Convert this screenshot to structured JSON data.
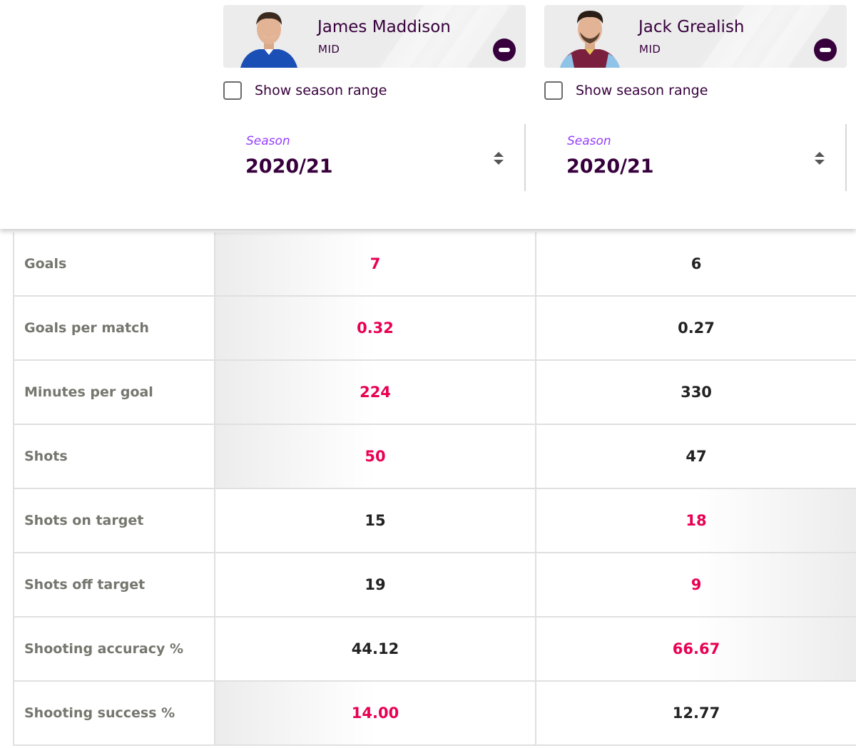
{
  "players": [
    {
      "name": "James Maddison",
      "position": "MID",
      "shirt_color": "#1a4fb5",
      "remove_icon": "minus-circle-icon",
      "season_range_label": "Show season range",
      "season_range_checked": false,
      "season_label": "Season",
      "season_value": "2020/21"
    },
    {
      "name": "Jack Grealish",
      "position": "MID",
      "shirt_color": "#7a1f3d",
      "remove_icon": "minus-circle-icon",
      "season_range_label": "Show season range",
      "season_range_checked": false,
      "season_label": "Season",
      "season_value": "2020/21"
    }
  ],
  "colors": {
    "primary": "#37003c",
    "accent_purple": "#963cff",
    "winner": "#e90052",
    "label_grey": "#76766f"
  },
  "stats": [
    {
      "label": "Goals",
      "a": "7",
      "b": "6",
      "winner": "a"
    },
    {
      "label": "Goals per match",
      "a": "0.32",
      "b": "0.27",
      "winner": "a"
    },
    {
      "label": "Minutes per goal",
      "a": "224",
      "b": "330",
      "winner": "a"
    },
    {
      "label": "Shots",
      "a": "50",
      "b": "47",
      "winner": "a"
    },
    {
      "label": "Shots on target",
      "a": "15",
      "b": "18",
      "winner": "b"
    },
    {
      "label": "Shots off target",
      "a": "19",
      "b": "9",
      "winner": "b"
    },
    {
      "label": "Shooting accuracy %",
      "a": "44.12",
      "b": "66.67",
      "winner": "b"
    },
    {
      "label": "Shooting success %",
      "a": "14.00",
      "b": "12.77",
      "winner": "a"
    }
  ]
}
